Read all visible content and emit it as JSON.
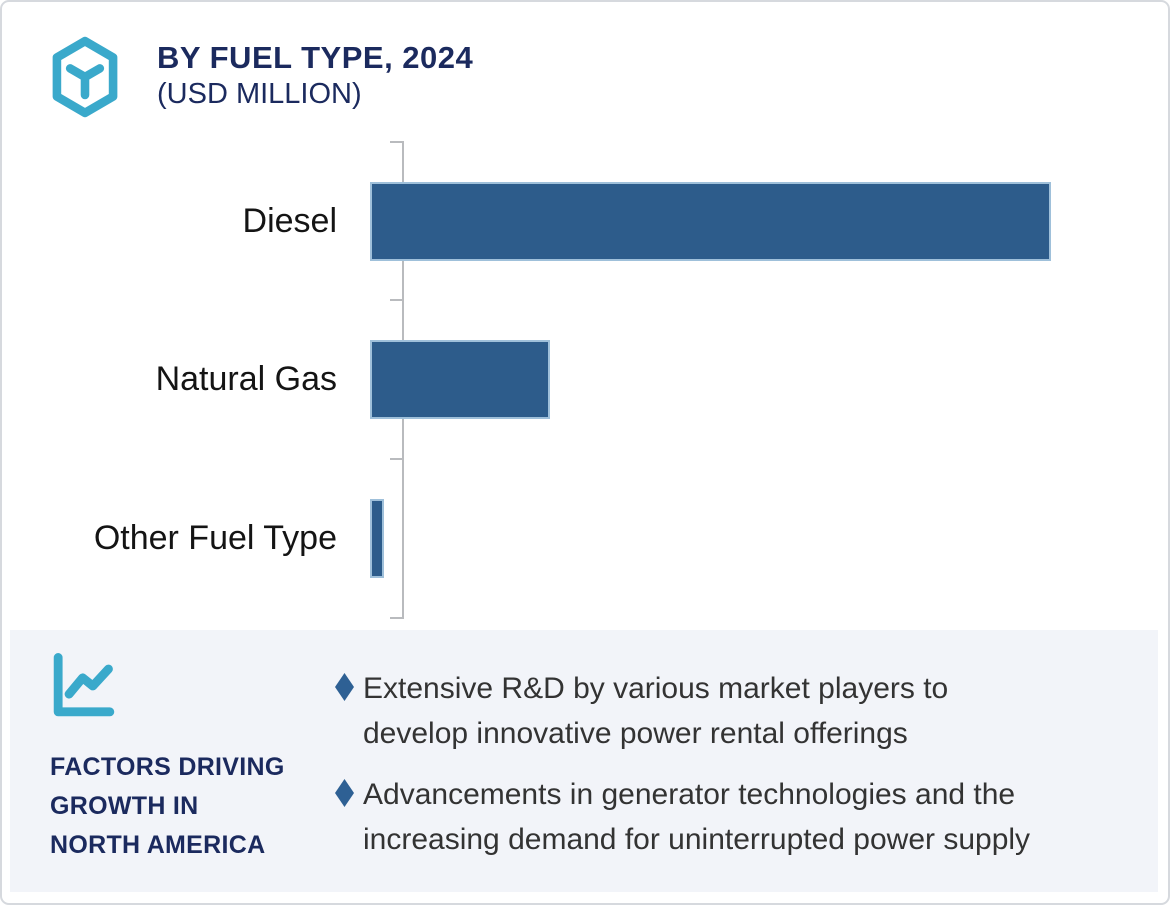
{
  "header": {
    "title": "BY FUEL TYPE, 2024",
    "subtitle": "(USD MILLION)"
  },
  "chart_data": {
    "type": "bar",
    "orientation": "horizontal",
    "title": "BY FUEL TYPE, 2024 (USD MILLION)",
    "unit": "USD Million",
    "categories": [
      "Diesel",
      "Natural Gas",
      "Other Fuel Type"
    ],
    "values_pct_of_max": [
      100,
      26.4,
      2.1
    ],
    "value_axis_labels": [],
    "grid": false,
    "legend": false,
    "bar_color": "#2d5c8b",
    "layout_note": "No numeric axis tick labels shown; values are relative bar lengths as percent of the longest (Diesel) bar"
  },
  "factors": {
    "heading_lines": [
      "FACTORS DRIVING",
      "GROWTH IN",
      "NORTH AMERICA"
    ],
    "bullets": [
      {
        "lines": [
          "Extensive R&D by various market players to",
          "develop innovative power rental offerings"
        ]
      },
      {
        "lines": [
          "Advancements in generator technologies and the",
          "increasing demand for uninterrupted power supply"
        ]
      }
    ]
  },
  "icons": {
    "header_icon": "hexagon-cube-icon",
    "factors_icon": "line-chart-icon",
    "bullet_icon": "diamond-bullet"
  },
  "colors": {
    "accent_teal": "#3aa9cb",
    "navy": "#1b2a5e",
    "bar_fill": "#2d5c8b",
    "bar_stroke": "#9fc0da",
    "panel_background": "#f2f4f9",
    "axis_gray": "#b9bbbe",
    "card_border": "#d6d9de",
    "body_text": "#333333"
  }
}
